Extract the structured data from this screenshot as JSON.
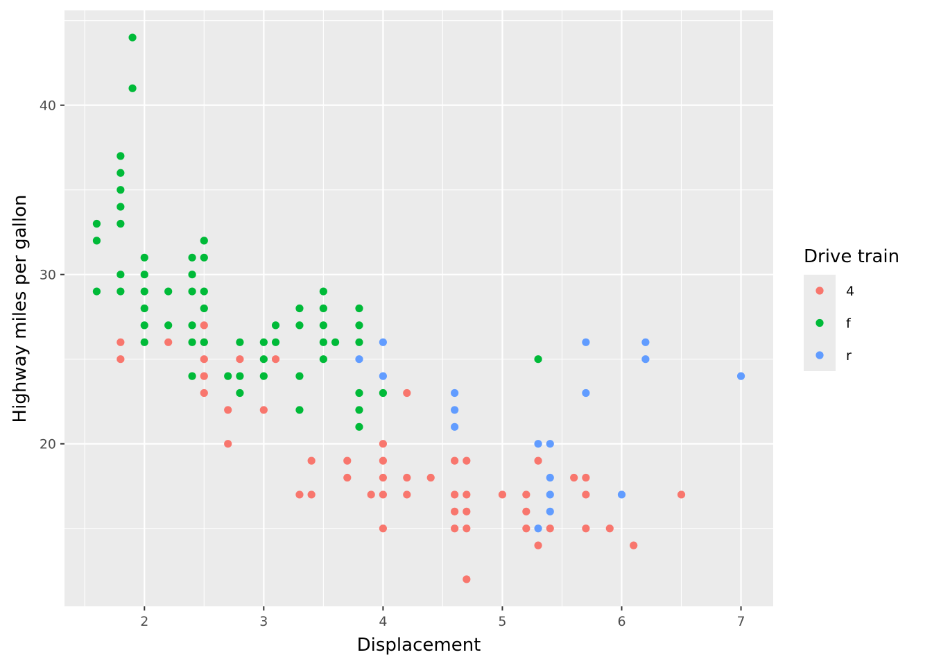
{
  "chart_data": {
    "type": "scatter",
    "xlabel": "Displacement",
    "ylabel": "Highway miles per gallon",
    "xlim": [
      1.33,
      7.27
    ],
    "ylim": [
      10.4,
      45.6
    ],
    "x_ticks": [
      2,
      3,
      4,
      5,
      6,
      7
    ],
    "y_ticks": [
      20,
      30,
      40
    ],
    "grid": true,
    "legend": {
      "title": "Drive train",
      "position": "right"
    },
    "series": [
      {
        "name": "4",
        "color": "#F8766D",
        "points": [
          [
            1.8,
            26
          ],
          [
            1.8,
            25
          ],
          [
            2.2,
            26
          ],
          [
            2.5,
            27
          ],
          [
            2.5,
            26
          ],
          [
            2.5,
            25
          ],
          [
            2.5,
            24
          ],
          [
            2.5,
            23
          ],
          [
            2.7,
            22
          ],
          [
            2.7,
            20
          ],
          [
            2.8,
            25
          ],
          [
            3.0,
            22
          ],
          [
            3.1,
            25
          ],
          [
            3.3,
            17
          ],
          [
            3.4,
            19
          ],
          [
            3.4,
            17
          ],
          [
            3.7,
            19
          ],
          [
            3.7,
            18
          ],
          [
            3.9,
            17
          ],
          [
            4.0,
            20
          ],
          [
            4.0,
            19
          ],
          [
            4.0,
            18
          ],
          [
            4.0,
            17
          ],
          [
            4.0,
            15
          ],
          [
            4.2,
            23
          ],
          [
            4.2,
            18
          ],
          [
            4.2,
            17
          ],
          [
            4.4,
            18
          ],
          [
            4.6,
            19
          ],
          [
            4.6,
            17
          ],
          [
            4.6,
            16
          ],
          [
            4.6,
            15
          ],
          [
            4.7,
            19
          ],
          [
            4.7,
            17
          ],
          [
            4.7,
            16
          ],
          [
            4.7,
            15
          ],
          [
            4.7,
            12
          ],
          [
            5.0,
            17
          ],
          [
            5.2,
            17
          ],
          [
            5.2,
            16
          ],
          [
            5.2,
            15
          ],
          [
            5.3,
            19
          ],
          [
            5.3,
            14
          ],
          [
            5.4,
            15
          ],
          [
            5.6,
            18
          ],
          [
            5.7,
            18
          ],
          [
            5.7,
            17
          ],
          [
            5.7,
            15
          ],
          [
            5.9,
            15
          ],
          [
            6.1,
            14
          ],
          [
            6.5,
            17
          ]
        ]
      },
      {
        "name": "f",
        "color": "#00BA38",
        "points": [
          [
            1.6,
            33
          ],
          [
            1.6,
            32
          ],
          [
            1.6,
            29
          ],
          [
            1.8,
            37
          ],
          [
            1.8,
            36
          ],
          [
            1.8,
            35
          ],
          [
            1.8,
            34
          ],
          [
            1.8,
            33
          ],
          [
            1.8,
            30
          ],
          [
            1.8,
            29
          ],
          [
            1.9,
            44
          ],
          [
            1.9,
            41
          ],
          [
            2.0,
            31
          ],
          [
            2.0,
            30
          ],
          [
            2.0,
            29
          ],
          [
            2.0,
            28
          ],
          [
            2.0,
            27
          ],
          [
            2.0,
            26
          ],
          [
            2.2,
            29
          ],
          [
            2.2,
            27
          ],
          [
            2.4,
            31
          ],
          [
            2.4,
            30
          ],
          [
            2.4,
            29
          ],
          [
            2.4,
            27
          ],
          [
            2.4,
            26
          ],
          [
            2.4,
            24
          ],
          [
            2.5,
            32
          ],
          [
            2.5,
            31
          ],
          [
            2.5,
            29
          ],
          [
            2.5,
            28
          ],
          [
            2.5,
            26
          ],
          [
            2.7,
            24
          ],
          [
            2.8,
            26
          ],
          [
            2.8,
            24
          ],
          [
            2.8,
            23
          ],
          [
            3.0,
            26
          ],
          [
            3.0,
            25
          ],
          [
            3.0,
            24
          ],
          [
            3.1,
            27
          ],
          [
            3.1,
            26
          ],
          [
            3.3,
            28
          ],
          [
            3.3,
            27
          ],
          [
            3.3,
            24
          ],
          [
            3.3,
            22
          ],
          [
            3.5,
            29
          ],
          [
            3.5,
            28
          ],
          [
            3.5,
            27
          ],
          [
            3.5,
            26
          ],
          [
            3.5,
            25
          ],
          [
            3.6,
            26
          ],
          [
            3.8,
            28
          ],
          [
            3.8,
            27
          ],
          [
            3.8,
            26
          ],
          [
            3.8,
            23
          ],
          [
            3.8,
            22
          ],
          [
            3.8,
            21
          ],
          [
            4.0,
            23
          ],
          [
            5.3,
            25
          ]
        ]
      },
      {
        "name": "r",
        "color": "#619CFF",
        "points": [
          [
            3.8,
            25
          ],
          [
            4.0,
            26
          ],
          [
            4.0,
            24
          ],
          [
            4.6,
            23
          ],
          [
            4.6,
            22
          ],
          [
            4.6,
            21
          ],
          [
            5.3,
            20
          ],
          [
            5.3,
            15
          ],
          [
            5.4,
            20
          ],
          [
            5.4,
            18
          ],
          [
            5.4,
            17
          ],
          [
            5.4,
            16
          ],
          [
            5.7,
            26
          ],
          [
            5.7,
            23
          ],
          [
            6.0,
            17
          ],
          [
            6.2,
            26
          ],
          [
            6.2,
            25
          ],
          [
            7.0,
            24
          ]
        ]
      }
    ]
  }
}
